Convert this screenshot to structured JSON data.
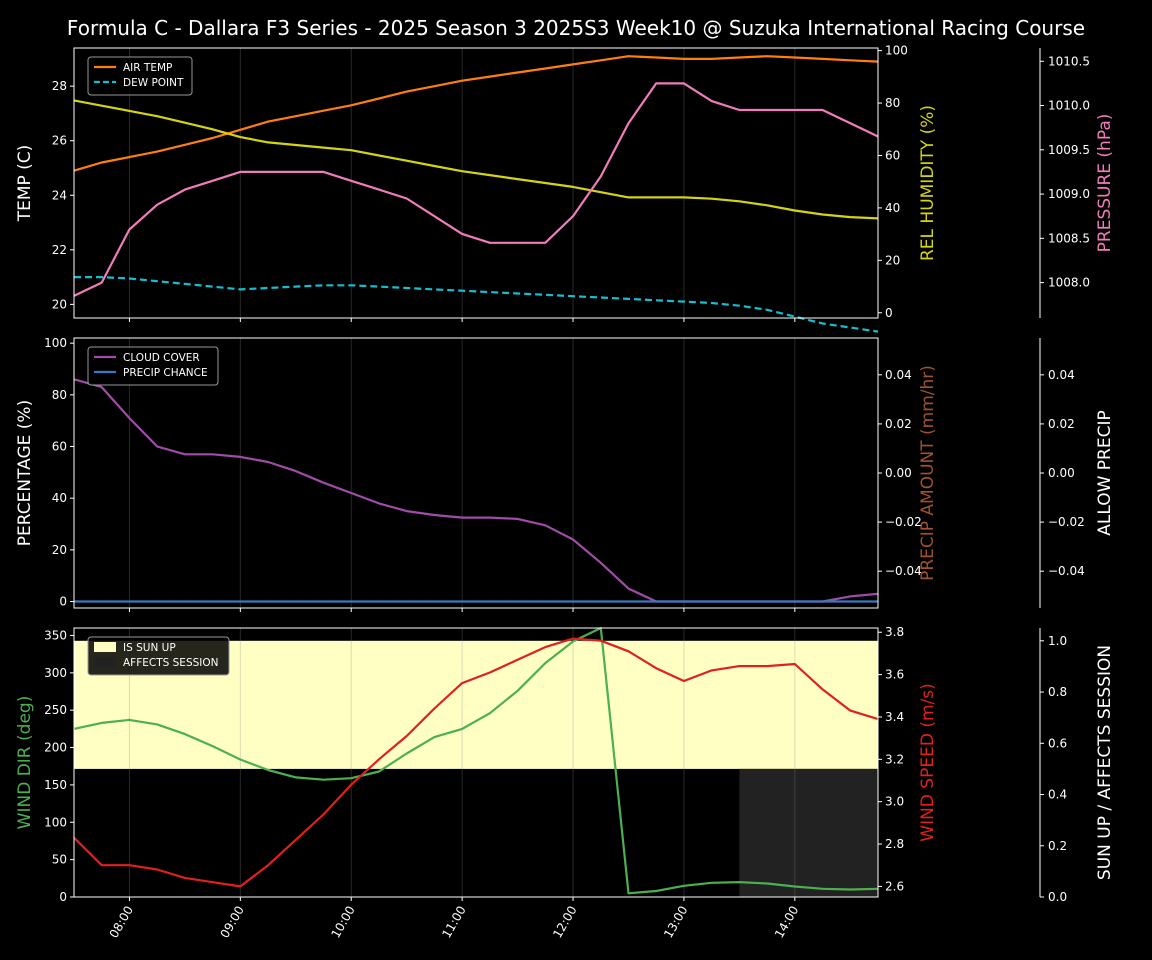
{
  "title": "Formula C -  Dallara F3 Series - 2025 Season 3 2025S3 Week10 @ Suzuka International Racing Course",
  "time_ticks": [
    "08:00",
    "09:00",
    "10:00",
    "11:00",
    "12:00",
    "13:00",
    "14:00"
  ],
  "colors": {
    "air_temp": "#ff7f0e",
    "dew_point": "#17becf",
    "rel_humidity": "#d4d414",
    "pressure": "#f07cba",
    "cloud_cover": "#a04ca8",
    "precip_chance": "#3a78c0",
    "precip_amount_label": "#a0522d",
    "wind_dir": "#4caf50",
    "wind_speed": "#e0201e",
    "sun_up": "#ffffc4",
    "affects_session": "#222222"
  },
  "chart_data": [
    {
      "type": "line",
      "panel": "temperature",
      "x": [
        "07:30",
        "07:45",
        "08:00",
        "08:15",
        "08:30",
        "08:45",
        "09:00",
        "09:15",
        "09:30",
        "09:45",
        "10:00",
        "10:15",
        "10:30",
        "10:45",
        "11:00",
        "11:15",
        "11:30",
        "11:45",
        "12:00",
        "12:15",
        "12:30",
        "12:45",
        "13:00",
        "13:15",
        "13:30",
        "13:45",
        "14:00",
        "14:15",
        "14:30",
        "14:45"
      ],
      "ylabel": "TEMP (C)",
      "y2label": "REL HUMIDITY (%)",
      "y3label": "PRESSURE (hPa)",
      "ylim": [
        19.5,
        29.4
      ],
      "y2lim": [
        -2,
        101
      ],
      "y3lim": [
        1007.6,
        1010.65
      ],
      "yticks": [
        "20",
        "22",
        "24",
        "26",
        "28"
      ],
      "y2ticks": [
        "0",
        "20",
        "40",
        "60",
        "80",
        "100"
      ],
      "y3ticks": [
        "1008.0",
        "1008.5",
        "1009.0",
        "1009.5",
        "1010.0",
        "1010.5"
      ],
      "legend_position": "top-left",
      "series": [
        {
          "name": "AIR TEMP",
          "axis": "left",
          "style": "solid",
          "values": [
            24.9,
            25.2,
            25.4,
            25.6,
            25.85,
            26.1,
            26.4,
            26.7,
            26.9,
            27.1,
            27.3,
            27.55,
            27.8,
            28.0,
            28.2,
            28.35,
            28.5,
            28.65,
            28.8,
            28.95,
            29.1,
            29.05,
            29.0,
            29.0,
            29.05,
            29.1,
            29.05,
            29.0,
            28.95,
            28.9
          ]
        },
        {
          "name": "DEW POINT",
          "axis": "left",
          "style": "dashed",
          "values": [
            21.0,
            21.0,
            20.95,
            20.85,
            20.75,
            20.65,
            20.55,
            20.6,
            20.65,
            20.7,
            20.7,
            20.65,
            20.6,
            20.55,
            20.5,
            20.45,
            20.4,
            20.35,
            20.3,
            20.25,
            20.2,
            20.15,
            20.1,
            20.05,
            19.95,
            19.8,
            19.55,
            19.3,
            19.15,
            19.0
          ]
        },
        {
          "name": "REL HUMIDITY",
          "axis": "right",
          "style": "solid",
          "values": [
            81,
            79,
            77,
            75,
            72.5,
            70,
            67,
            65,
            64,
            63,
            62,
            60,
            58,
            56,
            54,
            52.5,
            51,
            49.5,
            48,
            46,
            44,
            44,
            44,
            43.5,
            42.5,
            41,
            39,
            37.5,
            36.5,
            36
          ]
        },
        {
          "name": "PRESSURE",
          "axis": "right2",
          "style": "solid",
          "values": [
            1007.85,
            1008.0,
            1008.6,
            1008.88,
            1009.05,
            1009.15,
            1009.25,
            1009.25,
            1009.25,
            1009.25,
            1009.15,
            1009.05,
            1008.95,
            1008.75,
            1008.55,
            1008.45,
            1008.45,
            1008.45,
            1008.75,
            1009.2,
            1009.8,
            1010.25,
            1010.25,
            1010.05,
            1009.95,
            1009.95,
            1009.95,
            1009.95,
            1009.8,
            1009.65
          ]
        }
      ]
    },
    {
      "type": "line",
      "panel": "precipitation",
      "x": [
        "07:30",
        "07:45",
        "08:00",
        "08:15",
        "08:30",
        "08:45",
        "09:00",
        "09:15",
        "09:30",
        "09:45",
        "10:00",
        "10:15",
        "10:30",
        "10:45",
        "11:00",
        "11:15",
        "11:30",
        "11:45",
        "12:00",
        "12:15",
        "12:30",
        "12:45",
        "13:00",
        "13:15",
        "13:30",
        "13:45",
        "14:00",
        "14:15",
        "14:30",
        "14:45"
      ],
      "ylabel": "PERCENTAGE (%)",
      "y2label": "PRECIP AMOUNT (mm/hr)",
      "y3label": "ALLOW PRECIP",
      "ylim": [
        -2.5,
        102
      ],
      "y2lim": [
        -0.055,
        0.055
      ],
      "y3lim": [
        -0.055,
        0.055
      ],
      "yticks": [
        "0",
        "20",
        "40",
        "60",
        "80",
        "100"
      ],
      "y2ticks": [
        "−0.04",
        "−0.02",
        "0.00",
        "0.02",
        "0.04"
      ],
      "y3ticks": [
        "−0.04",
        "−0.02",
        "0.00",
        "0.02",
        "0.04"
      ],
      "legend_position": "top-left",
      "series": [
        {
          "name": "CLOUD COVER",
          "axis": "left",
          "values": [
            86,
            83,
            71,
            60,
            57,
            57,
            56,
            54,
            50.5,
            46,
            42,
            38,
            35,
            33.5,
            32.5,
            32.5,
            32,
            29.5,
            24,
            15,
            5,
            0,
            0,
            0,
            0,
            0,
            0,
            0,
            2,
            3
          ]
        },
        {
          "name": "PRECIP CHANCE",
          "axis": "left",
          "values": [
            0,
            0,
            0,
            0,
            0,
            0,
            0,
            0,
            0,
            0,
            0,
            0,
            0,
            0,
            0,
            0,
            0,
            0,
            0,
            0,
            0,
            0,
            0,
            0,
            0,
            0,
            0,
            0,
            0,
            0
          ]
        }
      ]
    },
    {
      "type": "line",
      "panel": "wind",
      "x": [
        "07:30",
        "07:45",
        "08:00",
        "08:15",
        "08:30",
        "08:45",
        "09:00",
        "09:15",
        "09:30",
        "09:45",
        "10:00",
        "10:15",
        "10:30",
        "10:45",
        "11:00",
        "11:15",
        "11:30",
        "11:45",
        "12:00",
        "12:15",
        "12:30",
        "12:45",
        "13:00",
        "13:15",
        "13:30",
        "13:45",
        "14:00",
        "14:15",
        "14:30",
        "14:45"
      ],
      "ylabel": "WIND DIR (deg)",
      "y2label": "WIND SPEED (m/s)",
      "y3label": "SUN UP / AFFECTS SESSION",
      "ylim": [
        0,
        360
      ],
      "y2lim": [
        2.55,
        3.82
      ],
      "y3lim": [
        0,
        1.05
      ],
      "yticks": [
        "0",
        "50",
        "100",
        "150",
        "200",
        "250",
        "300",
        "350"
      ],
      "y2ticks": [
        "2.6",
        "2.8",
        "3.0",
        "3.2",
        "3.4",
        "3.6",
        "3.8"
      ],
      "y3ticks": [
        "0.0",
        "0.2",
        "0.4",
        "0.6",
        "0.8",
        "1.0"
      ],
      "legend_position": "top-left",
      "bands": [
        {
          "name": "IS SUN UP",
          "from": "07:30",
          "to": "14:45",
          "value_from": 0.5,
          "value_to": 1.0
        },
        {
          "name": "AFFECTS SESSION",
          "from": "13:30",
          "to": "14:45",
          "value_from": 0.0,
          "value_to": 0.5
        }
      ],
      "series": [
        {
          "name": "WIND DIR",
          "axis": "left",
          "values": [
            225,
            233,
            237,
            231,
            218,
            202,
            184,
            170,
            160,
            157,
            159,
            168,
            192,
            214,
            225,
            246,
            276,
            313,
            342,
            360,
            5,
            8,
            15,
            19,
            20,
            18,
            14,
            11,
            10,
            11
          ]
        },
        {
          "name": "WIND SPEED",
          "axis": "right",
          "values": [
            2.83,
            2.7,
            2.7,
            2.68,
            2.64,
            2.62,
            2.6,
            2.7,
            2.82,
            2.94,
            3.08,
            3.2,
            3.31,
            3.44,
            3.56,
            3.61,
            3.67,
            3.73,
            3.77,
            3.76,
            3.71,
            3.63,
            3.57,
            3.62,
            3.64,
            3.64,
            3.65,
            3.53,
            3.43,
            3.39
          ]
        }
      ]
    }
  ]
}
